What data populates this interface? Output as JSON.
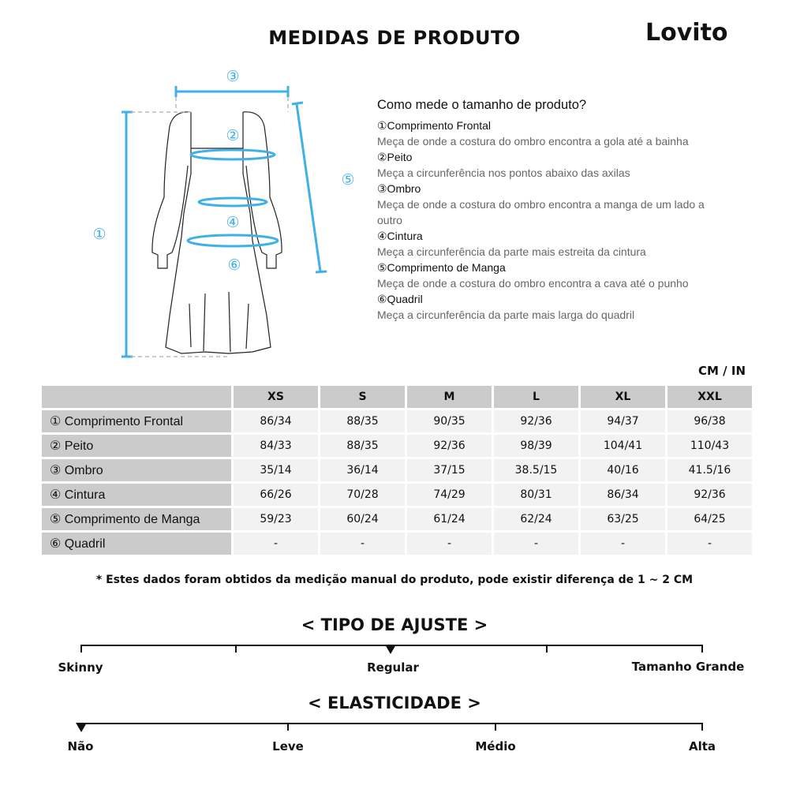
{
  "title": "MEDIDAS DE PRODUTO",
  "brand": "Lovito",
  "diagram": {
    "labels": [
      "①",
      "②",
      "③",
      "④",
      "⑤",
      "⑥"
    ],
    "accent_color": "#3fb0e8"
  },
  "howto": {
    "heading": "Como mede o tamanho de produto?",
    "items": [
      {
        "name": "①Comprimento Frontal",
        "desc": "Meça de onde a costura do ombro encontra a gola até a bainha"
      },
      {
        "name": "②Peito",
        "desc": "Meça a circunferência nos pontos abaixo das axilas"
      },
      {
        "name": "③Ombro",
        "desc": "Meça de onde a costura do ombro encontra a manga de um lado a outro"
      },
      {
        "name": "④Cintura",
        "desc": "Meça a circunferência da parte mais estreita da cintura"
      },
      {
        "name": "⑤Comprimento de Manga",
        "desc": "Meça de onde a costura do ombro encontra a cava até o punho"
      },
      {
        "name": "⑥Quadril",
        "desc": "Meça a circunferência da parte mais larga do quadril"
      }
    ]
  },
  "unit": "CM / IN",
  "table": {
    "sizes": [
      "XS",
      "S",
      "M",
      "L",
      "XL",
      "XXL"
    ],
    "rows": [
      {
        "label": "① Comprimento Frontal",
        "values": [
          "86/34",
          "88/35",
          "90/35",
          "92/36",
          "94/37",
          "96/38"
        ]
      },
      {
        "label": "② Peito",
        "values": [
          "84/33",
          "88/35",
          "92/36",
          "98/39",
          "104/41",
          "110/43"
        ]
      },
      {
        "label": "③ Ombro",
        "values": [
          "35/14",
          "36/14",
          "37/15",
          "38.5/15",
          "40/16",
          "41.5/16"
        ]
      },
      {
        "label": "④ Cintura",
        "values": [
          "66/26",
          "70/28",
          "74/29",
          "80/31",
          "86/34",
          "92/36"
        ]
      },
      {
        "label": "⑤ Comprimento de Manga",
        "values": [
          "59/23",
          "60/24",
          "61/24",
          "62/24",
          "63/25",
          "64/25"
        ]
      },
      {
        "label": "⑥ Quadril",
        "values": [
          "-",
          "-",
          "-",
          "-",
          "-",
          "-"
        ]
      }
    ]
  },
  "note": "* Estes dados foram obtidos da medição manual do produto, pode existir diferença de 1 ~ 2 CM",
  "fit": {
    "title": "< TIPO DE AJUSTE >",
    "labels": [
      "Skinny",
      "Regular",
      "Tamanho Grande"
    ],
    "selected": "Regular"
  },
  "elasticity": {
    "title": "< ELASTICIDADE >",
    "labels": [
      "Não",
      "Leve",
      "Médio",
      "Alta"
    ],
    "selected": "Não"
  }
}
